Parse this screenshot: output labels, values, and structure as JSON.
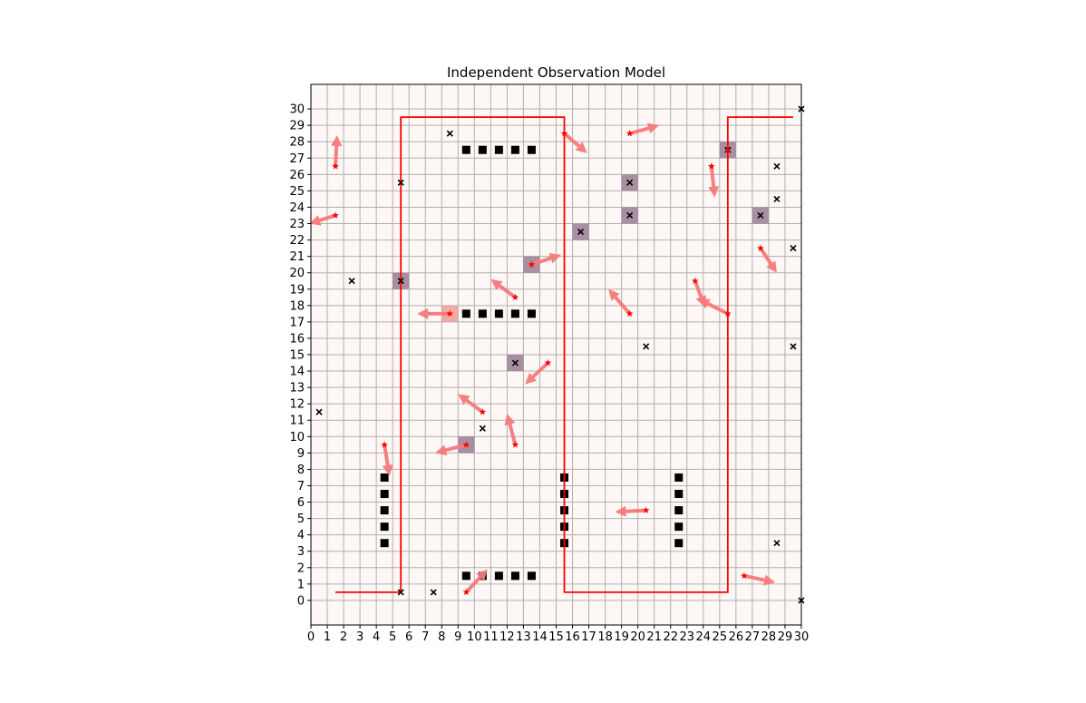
{
  "chart_data": {
    "type": "scatter",
    "title": "Independent Observation Model",
    "xlabel": "",
    "ylabel": "",
    "xlim": [
      0,
      30
    ],
    "ylim": [
      -1.5,
      31.5
    ],
    "grid": true,
    "x_ticks": [
      "0",
      "1",
      "2",
      "3",
      "4",
      "5",
      "6",
      "7",
      "8",
      "9",
      "10",
      "11",
      "12",
      "13",
      "14",
      "15",
      "16",
      "17",
      "18",
      "19",
      "20",
      "21",
      "22",
      "23",
      "24",
      "25",
      "26",
      "27",
      "28",
      "29",
      "30"
    ],
    "y_ticks": [
      "0",
      "1",
      "2",
      "3",
      "4",
      "5",
      "6",
      "7",
      "8",
      "9",
      "10",
      "11",
      "12",
      "13",
      "14",
      "15",
      "16",
      "17",
      "18",
      "19",
      "20",
      "21",
      "22",
      "23",
      "24",
      "25",
      "26",
      "27",
      "28",
      "29",
      "30"
    ],
    "colors": {
      "background": "#fdf7f5",
      "grid": "#b0b0b0",
      "obstacle": "#000000",
      "path": "#ff0000",
      "agent": "#ff0000",
      "arrow": "#f87878",
      "observation_cell": "#9a7c93",
      "observation_cell_light": "#ed9d98",
      "x_marker": "#000000"
    },
    "obstacles": [
      [
        9.5,
        27.5
      ],
      [
        10.5,
        27.5
      ],
      [
        11.5,
        27.5
      ],
      [
        12.5,
        27.5
      ],
      [
        13.5,
        27.5
      ],
      [
        9.5,
        17.5
      ],
      [
        10.5,
        17.5
      ],
      [
        11.5,
        17.5
      ],
      [
        12.5,
        17.5
      ],
      [
        13.5,
        17.5
      ],
      [
        4.5,
        7.5
      ],
      [
        4.5,
        6.5
      ],
      [
        4.5,
        5.5
      ],
      [
        4.5,
        4.5
      ],
      [
        4.5,
        3.5
      ],
      [
        15.5,
        7.5
      ],
      [
        15.5,
        6.5
      ],
      [
        15.5,
        5.5
      ],
      [
        15.5,
        4.5
      ],
      [
        15.5,
        3.5
      ],
      [
        22.5,
        7.5
      ],
      [
        22.5,
        6.5
      ],
      [
        22.5,
        5.5
      ],
      [
        22.5,
        4.5
      ],
      [
        22.5,
        3.5
      ],
      [
        9.5,
        1.5
      ],
      [
        10.5,
        1.5
      ],
      [
        11.5,
        1.5
      ],
      [
        12.5,
        1.5
      ],
      [
        13.5,
        1.5
      ]
    ],
    "path": [
      [
        1.5,
        0.5
      ],
      [
        5.5,
        0.5
      ],
      [
        5.5,
        29.5
      ],
      [
        15.5,
        29.5
      ],
      [
        15.5,
        0.5
      ],
      [
        25.5,
        0.5
      ],
      [
        25.5,
        29.5
      ],
      [
        29.5,
        29.5
      ]
    ],
    "observation_cells": [
      {
        "x": 25.5,
        "y": 27.5,
        "shade": "dark"
      },
      {
        "x": 19.5,
        "y": 25.5,
        "shade": "dark"
      },
      {
        "x": 19.5,
        "y": 23.5,
        "shade": "dark"
      },
      {
        "x": 27.5,
        "y": 23.5,
        "shade": "dark"
      },
      {
        "x": 16.5,
        "y": 22.5,
        "shade": "dark"
      },
      {
        "x": 13.5,
        "y": 20.5,
        "shade": "dark"
      },
      {
        "x": 5.5,
        "y": 19.5,
        "shade": "dark"
      },
      {
        "x": 8.5,
        "y": 17.5,
        "shade": "light"
      },
      {
        "x": 12.5,
        "y": 14.5,
        "shade": "dark"
      },
      {
        "x": 9.5,
        "y": 9.5,
        "shade": "dark"
      }
    ],
    "x_markers": [
      [
        8.5,
        28.5
      ],
      [
        28.5,
        26.5
      ],
      [
        5.5,
        25.5
      ],
      [
        28.5,
        24.5
      ],
      [
        29.5,
        21.5
      ],
      [
        2.5,
        19.5
      ],
      [
        20.5,
        15.5
      ],
      [
        29.5,
        15.5
      ],
      [
        0.5,
        11.5
      ],
      [
        10.5,
        10.5
      ],
      [
        28.5,
        3.5
      ],
      [
        5.5,
        0.5
      ],
      [
        7.5,
        0.5
      ],
      [
        30,
        30
      ],
      [
        30,
        0
      ],
      [
        25.5,
        27.5
      ],
      [
        19.5,
        25.5
      ],
      [
        19.5,
        23.5
      ],
      [
        27.5,
        23.5
      ],
      [
        16.5,
        22.5
      ],
      [
        5.5,
        19.5
      ],
      [
        12.5,
        14.5
      ]
    ],
    "agents": [
      {
        "x": 1.5,
        "y": 26.5,
        "dx": 0.1,
        "dy": 1.9
      },
      {
        "x": 1.5,
        "y": 23.5,
        "dx": -1.6,
        "dy": -0.5
      },
      {
        "x": 15.5,
        "y": 28.5,
        "dx": 1.4,
        "dy": -1.2
      },
      {
        "x": 19.5,
        "y": 28.5,
        "dx": 1.8,
        "dy": 0.5
      },
      {
        "x": 24.5,
        "y": 26.5,
        "dx": 0.2,
        "dy": -1.9
      },
      {
        "x": 25.5,
        "y": 27.5,
        "dx": 0,
        "dy": 0
      },
      {
        "x": 27.5,
        "y": 21.5,
        "dx": 1.0,
        "dy": -1.5
      },
      {
        "x": 13.5,
        "y": 20.5,
        "dx": 1.8,
        "dy": 0.6
      },
      {
        "x": 12.5,
        "y": 18.5,
        "dx": -1.5,
        "dy": 1.1
      },
      {
        "x": 8.5,
        "y": 17.5,
        "dx": -2.0,
        "dy": 0
      },
      {
        "x": 19.5,
        "y": 17.5,
        "dx": -1.3,
        "dy": 1.5
      },
      {
        "x": 23.5,
        "y": 19.5,
        "dx": 0.6,
        "dy": -1.6
      },
      {
        "x": 25.5,
        "y": 17.5,
        "dx": -1.8,
        "dy": 0.9
      },
      {
        "x": 14.5,
        "y": 14.5,
        "dx": -1.4,
        "dy": -1.3
      },
      {
        "x": 10.5,
        "y": 11.5,
        "dx": -1.5,
        "dy": 1.1
      },
      {
        "x": 12.5,
        "y": 9.5,
        "dx": -0.5,
        "dy": 1.9
      },
      {
        "x": 9.5,
        "y": 9.5,
        "dx": -1.9,
        "dy": -0.5
      },
      {
        "x": 4.5,
        "y": 9.5,
        "dx": 0.3,
        "dy": -1.9
      },
      {
        "x": 20.5,
        "y": 5.5,
        "dx": -1.9,
        "dy": -0.1
      },
      {
        "x": 26.5,
        "y": 1.5,
        "dx": 1.9,
        "dy": -0.4
      },
      {
        "x": 9.5,
        "y": 0.5,
        "dx": 1.3,
        "dy": 1.4
      }
    ]
  }
}
